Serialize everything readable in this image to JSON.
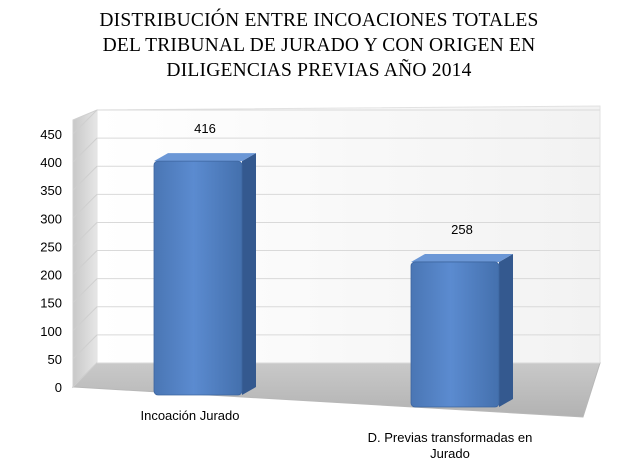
{
  "chart_data": {
    "type": "bar",
    "title_lines": [
      "DISTRIBUCIÓN ENTRE INCOACIONES TOTALES",
      "DEL TRIBUNAL DE JURADO Y CON ORIGEN EN",
      "DILIGENCIAS PREVIAS AÑO 2014"
    ],
    "categories": [
      "Incoación Jurado",
      "D. Previas transformadas en Jurado"
    ],
    "values": [
      416,
      258
    ],
    "data_labels": [
      "416",
      "258"
    ],
    "ylim": [
      0,
      450
    ],
    "yticks": [
      "0",
      "50",
      "100",
      "150",
      "200",
      "250",
      "300",
      "350",
      "400",
      "450"
    ],
    "grid": true,
    "bar_color": "#4f81bd"
  }
}
